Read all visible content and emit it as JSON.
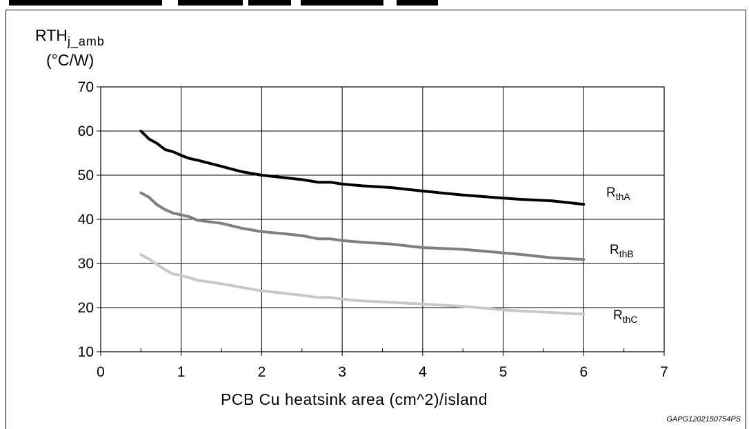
{
  "chart_data": {
    "type": "line",
    "ylabel_main": "RTH",
    "ylabel_sub": "j_amb",
    "ylabel_unit": "(°C/W)",
    "xlabel": "PCB Cu heatsink area (cm^2)/island",
    "xlim": [
      0,
      7
    ],
    "ylim": [
      10,
      70
    ],
    "xticks": [
      "0",
      "1",
      "2",
      "3",
      "4",
      "5",
      "6",
      "7"
    ],
    "yticks": [
      "10",
      "20",
      "30",
      "40",
      "50",
      "60",
      "70"
    ],
    "grid": true,
    "x": [
      0.5,
      0.6,
      0.7,
      0.8,
      0.9,
      1.0,
      1.1,
      1.2,
      1.5,
      1.75,
      2.0,
      2.25,
      2.5,
      2.7,
      2.85,
      3.0,
      3.25,
      3.6,
      4.0,
      4.5,
      5.0,
      5.25,
      5.6,
      6.0
    ],
    "series": [
      {
        "name": "RthA",
        "label_main": "R",
        "label_sub": "thA",
        "color": "#000000",
        "values": [
          60,
          58.2,
          57.2,
          55.8,
          55.3,
          54.5,
          53.8,
          53.4,
          52.0,
          50.8,
          50.0,
          49.5,
          49.0,
          48.4,
          48.4,
          48.0,
          47.6,
          47.2,
          46.4,
          45.5,
          44.8,
          44.5,
          44.2,
          43.4
        ]
      },
      {
        "name": "RthB",
        "label_main": "R",
        "label_sub": "thB",
        "color": "#7f7f7f",
        "values": [
          46,
          45,
          43.3,
          42.2,
          41.4,
          41,
          40.6,
          39.8,
          39.1,
          38.0,
          37.2,
          36.8,
          36.3,
          35.6,
          35.6,
          35.2,
          34.8,
          34.4,
          33.6,
          33.2,
          32.4,
          32.0,
          31.3,
          30.9
        ]
      },
      {
        "name": "RthC",
        "label_main": "R",
        "label_sub": "thC",
        "color": "#c8c8c8",
        "values": [
          32,
          31,
          29.8,
          28.6,
          27.6,
          27.3,
          26.8,
          26.2,
          25.4,
          24.6,
          23.8,
          23.3,
          22.8,
          22.3,
          22.3,
          21.9,
          21.5,
          21.2,
          20.8,
          20.3,
          19.5,
          19.2,
          18.9,
          18.5
        ]
      }
    ],
    "code": "GAPG1202150754PS"
  }
}
